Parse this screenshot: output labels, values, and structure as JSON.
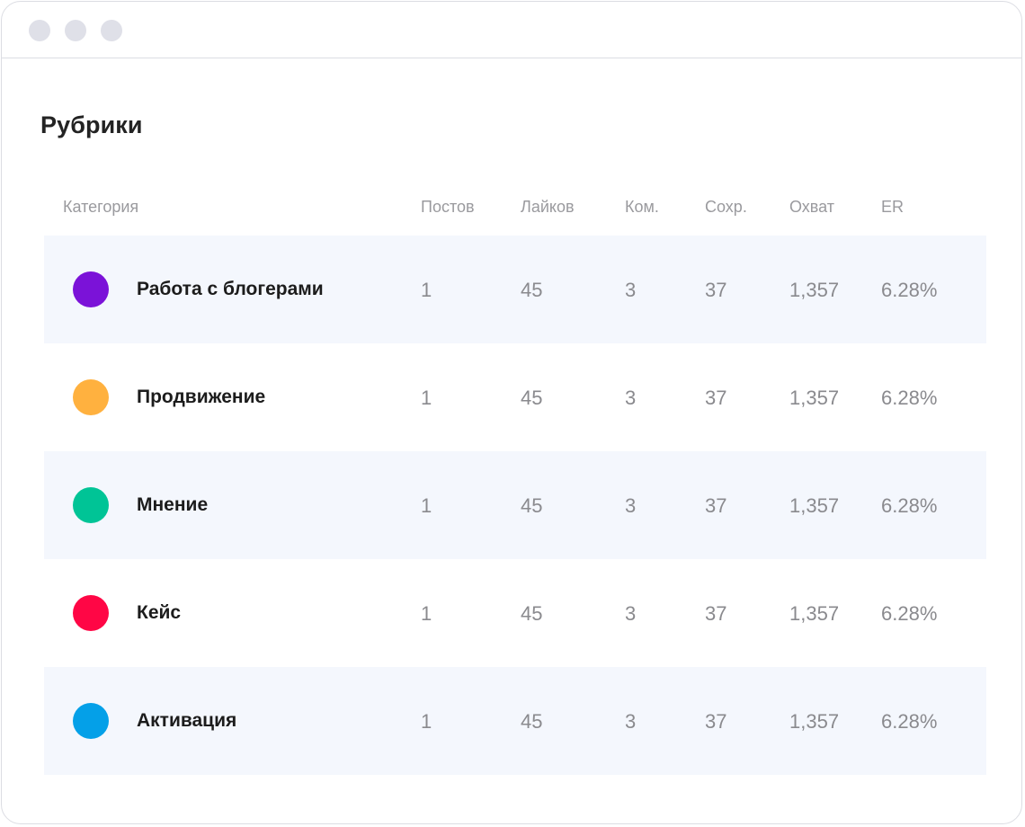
{
  "window": {
    "dots": [
      "#dfe0e8",
      "#dfe0e8",
      "#dfe0e8"
    ]
  },
  "title": "Рубрики",
  "table": {
    "headers": {
      "category": "Категория",
      "posts": "Постов",
      "likes": "Лайков",
      "comments": "Ком.",
      "saves": "Сохр.",
      "reach": "Охват",
      "er": "ER"
    },
    "rows": [
      {
        "category": "Работа с блогерами",
        "color": "#7b12d8",
        "posts": "1",
        "likes": "45",
        "comments": "3",
        "saves": "37",
        "reach": "1,357",
        "er": "6.28%"
      },
      {
        "category": "Продвижение",
        "color": "#ffb13f",
        "posts": "1",
        "likes": "45",
        "comments": "3",
        "saves": "37",
        "reach": "1,357",
        "er": "6.28%"
      },
      {
        "category": "Мнение",
        "color": "#00c496",
        "posts": "1",
        "likes": "45",
        "comments": "3",
        "saves": "37",
        "reach": "1,357",
        "er": "6.28%"
      },
      {
        "category": "Кейс",
        "color": "#ff0645",
        "posts": "1",
        "likes": "45",
        "comments": "3",
        "saves": "37",
        "reach": "1,357",
        "er": "6.28%"
      },
      {
        "category": "Активация",
        "color": "#04a0e8",
        "posts": "1",
        "likes": "45",
        "comments": "3",
        "saves": "37",
        "reach": "1,357",
        "er": "6.28%"
      }
    ]
  }
}
